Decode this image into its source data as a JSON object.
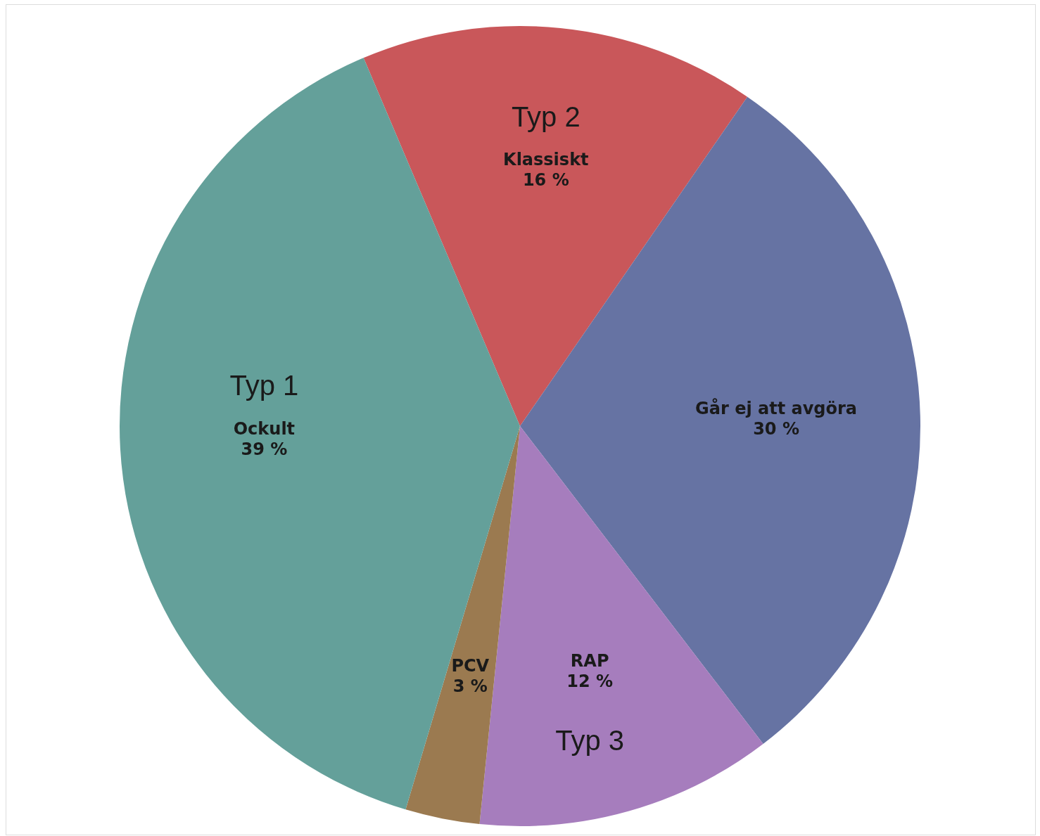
{
  "chart_data": {
    "type": "pie",
    "categories": [
      "Klassiskt",
      "Går ej att avgöra",
      "RAP",
      "PCV",
      "Ockult"
    ],
    "values": [
      16,
      30,
      12,
      3,
      39
    ],
    "value_labels": [
      "16 %",
      "30 %",
      "12 %",
      "3 %",
      "39 %"
    ],
    "colors": [
      "#c9575a",
      "#6673a3",
      "#a67dbd",
      "#9b7a50",
      "#64a09a"
    ],
    "annotations": [
      {
        "text": "Typ 2",
        "x": "Klassiskt"
      },
      {
        "text": "Typ 1",
        "x": "Ockult"
      },
      {
        "text": "Typ 3",
        "x": "RAP"
      }
    ],
    "legend": false
  }
}
